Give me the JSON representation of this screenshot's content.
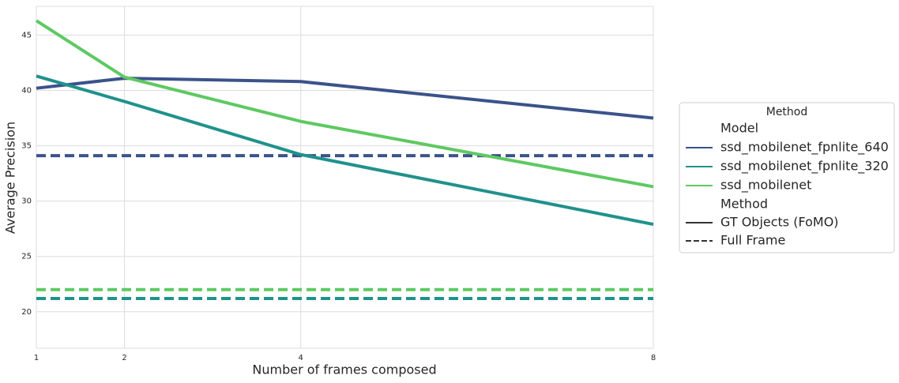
{
  "chart_data": {
    "type": "line",
    "xlabel": "Number of frames composed",
    "ylabel": "Average Precision",
    "x": [
      1,
      2,
      4,
      8
    ],
    "xlim": [
      1,
      8
    ],
    "xticks": [
      1,
      2,
      4,
      8
    ],
    "ylim": [
      16.7,
      47.6
    ],
    "yticks": [
      20,
      25,
      30,
      35,
      40,
      45
    ],
    "grid": true,
    "series": [
      {
        "name": "ssd_mobilenet_fpnlite_640",
        "color": "#3b528b",
        "values": [
          40.2,
          41.1,
          40.8,
          37.5
        ],
        "full_frame": 34.1
      },
      {
        "name": "ssd_mobilenet_fpnlite_320",
        "color": "#21918c",
        "values": [
          41.3,
          39.0,
          34.2,
          27.9
        ],
        "full_frame": 21.2
      },
      {
        "name": "ssd_mobilenet",
        "color": "#5ec962",
        "values": [
          46.3,
          41.2,
          37.2,
          31.3
        ],
        "full_frame": 22.0
      }
    ],
    "legend_title": "Method",
    "legend_hue_title": "Model",
    "legend_style_title": "Method",
    "styles": [
      {
        "name": "GT Objects (FoMO)",
        "dash": "solid"
      },
      {
        "name": "Full Frame",
        "dash": "dashed"
      }
    ],
    "legend_position": "right"
  }
}
